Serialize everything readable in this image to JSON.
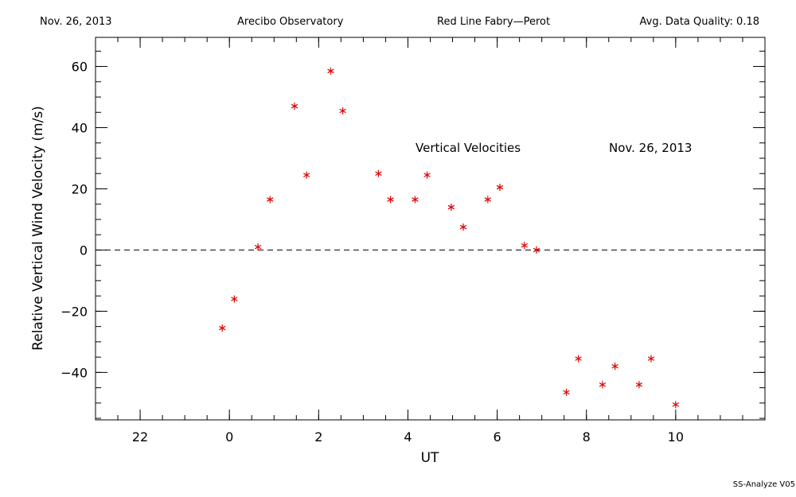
{
  "header": {
    "date": "Nov. 26, 2013",
    "observatory": "Arecibo Observatory",
    "instrument": "Red Line Fabry—Perot",
    "quality": "Avg. Data Quality: 0.18"
  },
  "footer": {
    "software": "SS-Analyze V05"
  },
  "colors": {
    "marker": "#dd0000",
    "axis": "#000000"
  },
  "chart_data": {
    "type": "scatter",
    "title": "Vertical Velocities",
    "annotation": "Nov. 26, 2013",
    "xlabel": "UT",
    "ylabel": "Relative Vertical Wind Velocity (m/s)",
    "xlim": [
      -3.0,
      12.0
    ],
    "ylim": [
      -55.5,
      69.5
    ],
    "x_major_ticks": [
      -2,
      0,
      2,
      4,
      6,
      8,
      10
    ],
    "x_tick_labels": [
      "22",
      "0",
      "2",
      "4",
      "6",
      "8",
      "10"
    ],
    "x_minor_step": 0.5,
    "y_major_ticks": [
      -40,
      -20,
      0,
      20,
      40,
      60
    ],
    "y_tick_labels": [
      "−40",
      "−20",
      "0",
      "20",
      "40",
      "60"
    ],
    "y_minor_step": 5,
    "zero_line": "dashed",
    "marker": "asterisk",
    "series": [
      {
        "x": [
          -0.16,
          0.11,
          0.64,
          0.91,
          1.46,
          1.73,
          2.27,
          2.54,
          3.34,
          3.61,
          4.16,
          4.43,
          4.97,
          5.24,
          5.79,
          6.06,
          6.61,
          6.88,
          7.55,
          7.82,
          8.36,
          8.64,
          9.18,
          9.45,
          10.0
        ],
        "y": [
          -25.5,
          -16,
          1,
          16.5,
          47,
          24.5,
          58.5,
          45.5,
          25,
          16.5,
          16.5,
          24.5,
          14,
          7.5,
          16.5,
          20.5,
          1.5,
          0,
          -46.5,
          -35.5,
          -44,
          -38,
          -44,
          -35.5,
          -50.5
        ]
      }
    ]
  }
}
